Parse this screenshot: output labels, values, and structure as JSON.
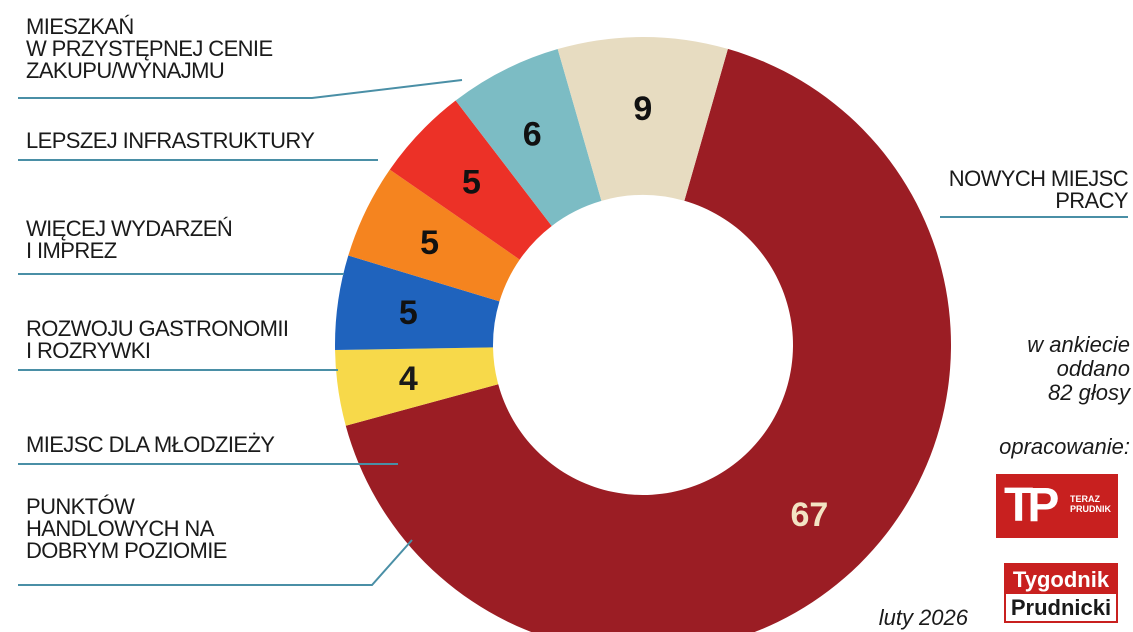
{
  "chart_data": {
    "type": "pie",
    "variant": "donut",
    "start_angle_deg": 16,
    "direction": "clockwise",
    "slices": [
      {
        "label": [
          "NOWYCH MIEJSC",
          "PRACY"
        ],
        "value": 67,
        "color": "#9b1d24",
        "value_color": "#f3e3c3"
      },
      {
        "label": [
          "PUNKTÓW",
          "HANDLOWYCH NA",
          "DOBRYM POZIOMIE"
        ],
        "value": 4,
        "color": "#f7d94a",
        "value_color": "#1a1a1a"
      },
      {
        "label": [
          "MIEJSC DLA MŁODZIEŻY"
        ],
        "value": 5,
        "color": "#1f63bd",
        "value_color": "#111111"
      },
      {
        "label": [
          "ROZWOJU GASTRONOMII",
          "I ROZRYWKI"
        ],
        "value": 5,
        "color": "#f5841f",
        "value_color": "#111111"
      },
      {
        "label": [
          "WIĘCEJ WYDARZEŃ",
          "I IMPREZ"
        ],
        "value": 5,
        "color": "#ec3127",
        "value_color": "#111111"
      },
      {
        "label": [
          "LEPSZEJ INFRASTRUKTURY"
        ],
        "value": 6,
        "color": "#7cbcc4",
        "value_color": "#111111"
      },
      {
        "label": [
          "MIESZKAŃ",
          "W PRZYSTĘPNEJ CENIE",
          "ZAKUPU/WYNAJMU"
        ],
        "value": 9,
        "color": "#e7dcc1",
        "value_color": "#111111"
      }
    ],
    "leader_color": "#4a8fa6"
  },
  "note": [
    "w ankiecie",
    "oddano",
    "82 głosy"
  ],
  "credit_label": "opracowanie:",
  "date": "luty 2026",
  "logos": {
    "teraz_prudnik": {
      "mark": "TP",
      "text": [
        "TERAZ",
        "PRUDNIK"
      ]
    },
    "tygodnik_prudnicki": {
      "top": "Tygodnik",
      "bottom": "Prudnicki"
    }
  }
}
